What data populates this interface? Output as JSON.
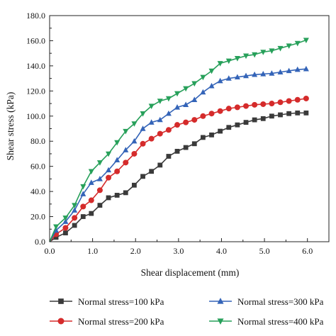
{
  "chart_data": {
    "type": "line",
    "xlabel": "Shear displacement (mm)",
    "ylabel": "Shear stress (kPa)",
    "xlim": [
      0,
      6.5
    ],
    "ylim": [
      0,
      180
    ],
    "xticks": [
      0,
      1,
      2,
      3,
      4,
      5,
      6
    ],
    "xtick_labels": [
      "0.0",
      "1.0",
      "2.0",
      "3.0",
      "4.0",
      "5.0",
      "6.0"
    ],
    "yticks": [
      0,
      20,
      40,
      60,
      80,
      100,
      120,
      140,
      160,
      180
    ],
    "ytick_labels": [
      "0.0",
      "20.0",
      "40.0",
      "60.0",
      "80.0",
      "100.0",
      "120.0",
      "140.0",
      "160.0",
      "180.0"
    ],
    "grid": false,
    "legend_position": "bottom",
    "x": [
      0,
      0.15,
      0.37,
      0.58,
      0.78,
      0.97,
      1.17,
      1.37,
      1.57,
      1.77,
      1.97,
      2.17,
      2.37,
      2.57,
      2.77,
      2.97,
      3.17,
      3.37,
      3.57,
      3.77,
      3.97,
      4.17,
      4.37,
      4.57,
      4.77,
      4.97,
      5.17,
      5.37,
      5.57,
      5.77,
      5.97
    ],
    "series": [
      {
        "name": "Normal stress=100 kPa",
        "color": "#3a3a3a",
        "marker": "square",
        "values": [
          0,
          3.5,
          7,
          13,
          20,
          22.5,
          29,
          35,
          37,
          39,
          45,
          52,
          56,
          61,
          68,
          72,
          75,
          78,
          83,
          85,
          88,
          91,
          93,
          95,
          97,
          98,
          100,
          101,
          102,
          102.5,
          102.5
        ]
      },
      {
        "name": "Normal stress=200 kPa",
        "color": "#d52b2b",
        "marker": "circle",
        "values": [
          0,
          6,
          11,
          19,
          28,
          33,
          41,
          51,
          56,
          63,
          70,
          78,
          82,
          86,
          89,
          93,
          95,
          97,
          100,
          102,
          104,
          106,
          107,
          108,
          109,
          109.5,
          110,
          111,
          112,
          113,
          114
        ]
      },
      {
        "name": "Normal stress=300 kPa",
        "color": "#3464b8",
        "marker": "triangle-up",
        "values": [
          0,
          9,
          16,
          25,
          38,
          47,
          50,
          57,
          65,
          73,
          80,
          90,
          95,
          97,
          102,
          107,
          109,
          113,
          119,
          124,
          128,
          130,
          131,
          132,
          133,
          133.5,
          134,
          135,
          136,
          137,
          137.5
        ]
      },
      {
        "name": "Normal stress=400 kPa",
        "color": "#27a05a",
        "marker": "triangle-down",
        "values": [
          0,
          12,
          19,
          29,
          44,
          56,
          63,
          70,
          79,
          88,
          94,
          102,
          108,
          112,
          114,
          118,
          122,
          126,
          131,
          136,
          142,
          144,
          146,
          148,
          149,
          151,
          152,
          154,
          156,
          158,
          160.5
        ]
      }
    ]
  }
}
